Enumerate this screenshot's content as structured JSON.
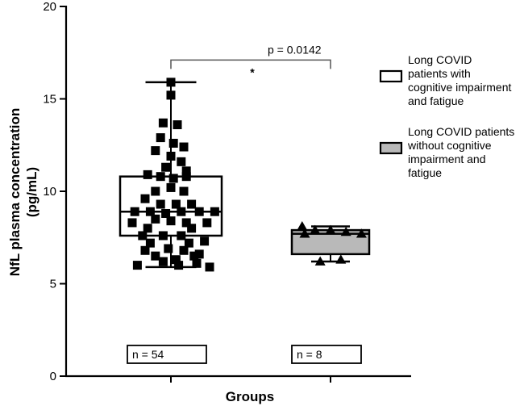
{
  "chart_data": {
    "type": "box",
    "title": "",
    "xlabel": "Groups",
    "ylabel": "NfL plasma concentration\n(pg/mL)",
    "ylim": [
      0,
      20
    ],
    "yticks": [
      0,
      5,
      10,
      15,
      20
    ],
    "grid": false,
    "legend_position": "right",
    "series": [
      {
        "name": "Long COVID patients with cognitive impairment and fatigue",
        "legend_lines": [
          "Long COVID",
          "patients with",
          "cognitive impairment",
          "and fatigue"
        ],
        "fill": "#ffffff",
        "marker": "square",
        "n_label": "n =  54",
        "box": {
          "min": 5.9,
          "q1": 7.6,
          "median": 8.9,
          "q3": 10.8,
          "max": 15.9
        },
        "points": [
          [
            0.0,
            15.9
          ],
          [
            0.0,
            15.2
          ],
          [
            -0.06,
            13.7
          ],
          [
            0.05,
            13.6
          ],
          [
            -0.08,
            12.9
          ],
          [
            0.02,
            12.6
          ],
          [
            0.1,
            12.4
          ],
          [
            -0.12,
            12.2
          ],
          [
            0.0,
            11.9
          ],
          [
            0.08,
            11.6
          ],
          [
            -0.04,
            11.3
          ],
          [
            0.12,
            11.1
          ],
          [
            -0.18,
            10.9
          ],
          [
            -0.08,
            10.8
          ],
          [
            0.02,
            10.7
          ],
          [
            0.12,
            10.8
          ],
          [
            0.0,
            10.2
          ],
          [
            -0.12,
            10.0
          ],
          [
            0.1,
            10.0
          ],
          [
            -0.2,
            9.6
          ],
          [
            -0.08,
            9.3
          ],
          [
            0.04,
            9.3
          ],
          [
            0.16,
            9.3
          ],
          [
            -0.28,
            8.9
          ],
          [
            -0.16,
            8.9
          ],
          [
            -0.04,
            8.8
          ],
          [
            0.08,
            8.9
          ],
          [
            0.22,
            8.9
          ],
          [
            0.34,
            8.9
          ],
          [
            -0.3,
            8.3
          ],
          [
            -0.12,
            8.5
          ],
          [
            0.0,
            8.4
          ],
          [
            0.12,
            8.3
          ],
          [
            0.28,
            8.3
          ],
          [
            -0.18,
            8.0
          ],
          [
            0.16,
            8.0
          ],
          [
            -0.22,
            7.6
          ],
          [
            -0.06,
            7.6
          ],
          [
            0.08,
            7.6
          ],
          [
            0.26,
            7.3
          ],
          [
            -0.16,
            7.2
          ],
          [
            0.14,
            7.2
          ],
          [
            -0.2,
            6.8
          ],
          [
            -0.02,
            6.9
          ],
          [
            0.1,
            6.8
          ],
          [
            0.22,
            6.6
          ],
          [
            -0.12,
            6.5
          ],
          [
            0.04,
            6.3
          ],
          [
            0.18,
            6.5
          ],
          [
            -0.26,
            6.0
          ],
          [
            -0.06,
            6.2
          ],
          [
            0.06,
            6.0
          ],
          [
            0.2,
            6.1
          ],
          [
            0.3,
            5.9
          ]
        ]
      },
      {
        "name": "Long COVID patients without cognitive impairment and fatigue",
        "legend_lines": [
          "Long COVID patients",
          "without cognitive",
          "impairment and",
          "fatigue"
        ],
        "fill": "#b9b9b9",
        "marker": "triangle",
        "n_label": "n =  8",
        "box": {
          "min": 6.2,
          "q1": 6.6,
          "median": 7.7,
          "q3": 7.9,
          "max": 8.1
        },
        "points": [
          [
            -0.22,
            8.1
          ],
          [
            -0.12,
            7.9
          ],
          [
            0.0,
            7.9
          ],
          [
            0.12,
            7.8
          ],
          [
            -0.2,
            7.7
          ],
          [
            0.24,
            7.7
          ],
          [
            -0.08,
            6.2
          ],
          [
            0.08,
            6.3
          ]
        ]
      }
    ],
    "annotations": [
      {
        "type": "significance",
        "star": "*",
        "text": "p = 0.0142",
        "between": [
          0,
          1
        ],
        "y": 17.1
      }
    ]
  }
}
